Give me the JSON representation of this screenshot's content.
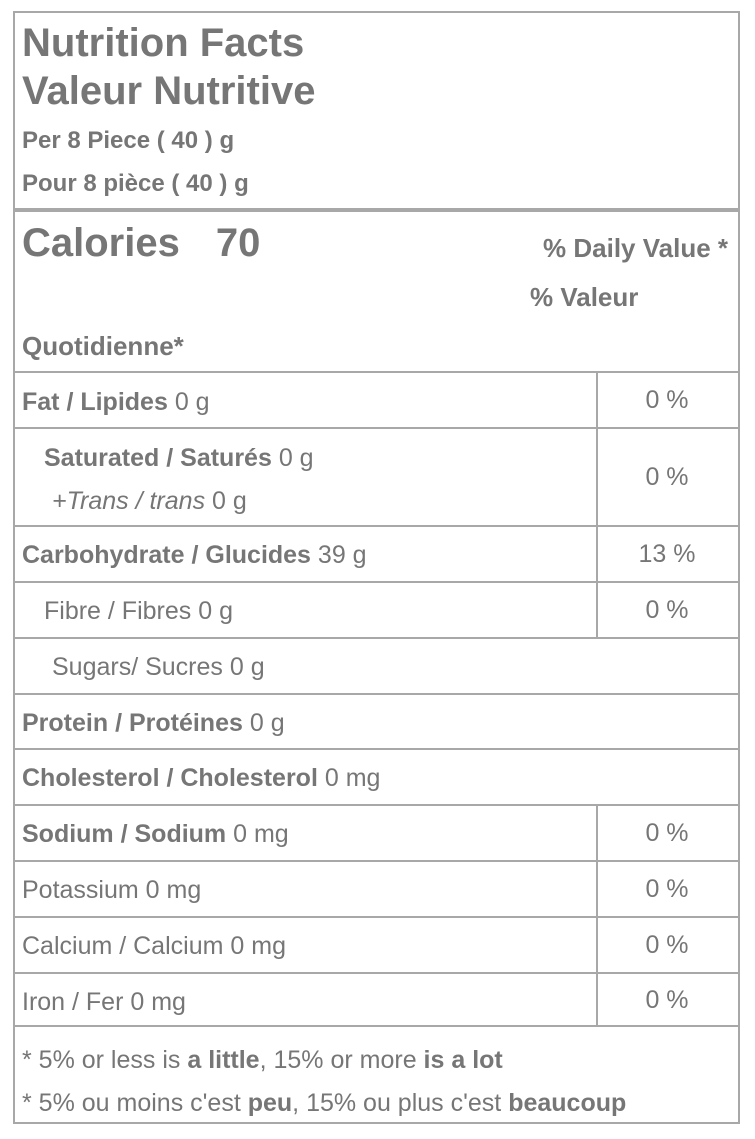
{
  "header": {
    "title_en": "Nutrition Facts",
    "title_fr": "Valeur Nutritive",
    "serving_en": "Per 8 Piece ( 40 ) g",
    "serving_fr": "Pour 8 pièce ( 40 ) g"
  },
  "calories": {
    "label": "Calories",
    "value": "70",
    "dv_line1": "% Daily Value *",
    "dv_line2": "% Valeur",
    "dv_line3": "Quotidienne*"
  },
  "nutrients": {
    "fat": {
      "name": "Fat / Lipides",
      "amount": "0 g",
      "dv": "0 %"
    },
    "saturated": {
      "name": "Saturated / Saturés",
      "amount": "0 g",
      "dv": "0 %"
    },
    "trans": {
      "name": "+Trans / trans",
      "amount": "0 g"
    },
    "carbohydrate": {
      "name": "Carbohydrate / Glucides",
      "amount": "39 g",
      "dv": "13 %"
    },
    "fibre": {
      "name": "Fibre / Fibres",
      "amount": "0 g",
      "dv": "0 %"
    },
    "sugars": {
      "name": "Sugars/ Sucres",
      "amount": "0 g"
    },
    "protein": {
      "name": "Protein / Protéines",
      "amount": "0 g"
    },
    "cholesterol": {
      "name": "Cholesterol / Cholesterol",
      "amount": "0 mg"
    },
    "sodium": {
      "name": "Sodium / Sodium",
      "amount": "0 mg",
      "dv": "0 %"
    },
    "potassium": {
      "name": "Potassium",
      "amount": "0 mg",
      "dv": "0 %"
    },
    "calcium": {
      "name": "Calcium / Calcium",
      "amount": "0 mg",
      "dv": "0 %"
    },
    "iron": {
      "name": "Iron / Fer",
      "amount": "0 mg",
      "dv": "0 %"
    }
  },
  "footnote": {
    "en_prefix": "* 5% or less is ",
    "en_little": "a little",
    "en_mid": ", 15% or more ",
    "en_lot": "is a lot",
    "fr_prefix": "* 5% ou moins c'est ",
    "fr_peu": "peu",
    "fr_mid": ", 15% ou plus c'est ",
    "fr_beaucoup": "beaucoup"
  },
  "colors": {
    "text": "#767676",
    "border": "#a8a8a8"
  }
}
